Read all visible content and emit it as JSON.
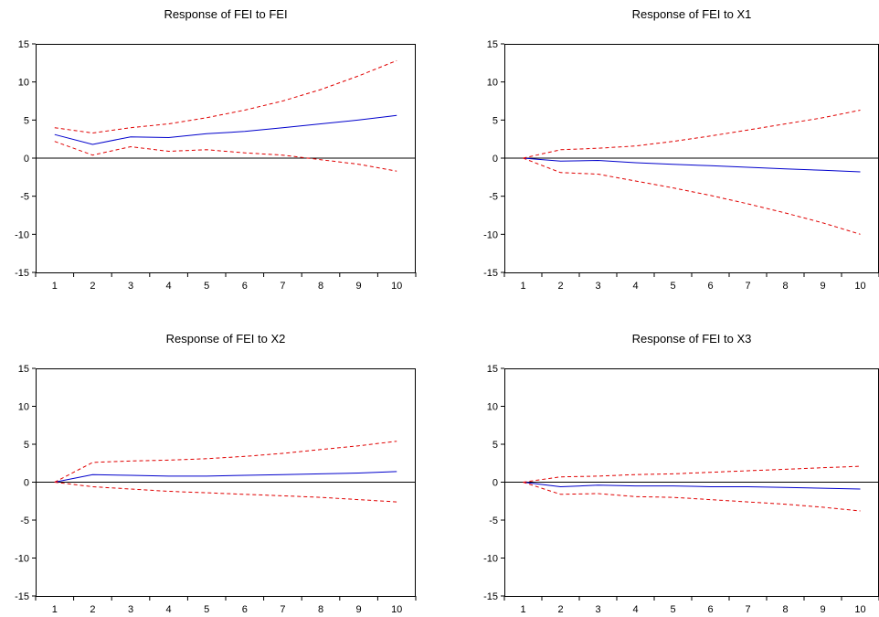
{
  "chart_data": [
    {
      "type": "line",
      "title": "Response of FEI to FEI",
      "x": [
        1,
        2,
        3,
        4,
        5,
        6,
        7,
        8,
        9,
        10
      ],
      "ylim": [
        -15,
        15
      ],
      "yticks": [
        15,
        10,
        5,
        0,
        -5,
        -10,
        -15
      ],
      "series": [
        {
          "role": "response",
          "color": "#0000cc",
          "style": "solid",
          "values": [
            3.1,
            1.8,
            2.8,
            2.7,
            3.2,
            3.5,
            4.0,
            4.5,
            5.0,
            5.6
          ]
        },
        {
          "role": "upper",
          "color": "#e00000",
          "style": "dashed",
          "values": [
            4.0,
            3.3,
            4.0,
            4.5,
            5.3,
            6.3,
            7.5,
            9.0,
            10.8,
            12.8
          ]
        },
        {
          "role": "lower",
          "color": "#e00000",
          "style": "dashed",
          "values": [
            2.2,
            0.4,
            1.5,
            0.9,
            1.1,
            0.7,
            0.4,
            -0.2,
            -0.8,
            -1.7
          ]
        }
      ]
    },
    {
      "type": "line",
      "title": "Response of FEI to X1",
      "x": [
        1,
        2,
        3,
        4,
        5,
        6,
        7,
        8,
        9,
        10
      ],
      "ylim": [
        -15,
        15
      ],
      "yticks": [
        15,
        10,
        5,
        0,
        -5,
        -10,
        -15
      ],
      "series": [
        {
          "role": "response",
          "color": "#0000cc",
          "style": "solid",
          "values": [
            0.0,
            -0.4,
            -0.3,
            -0.6,
            -0.8,
            -1.0,
            -1.2,
            -1.4,
            -1.6,
            -1.8
          ]
        },
        {
          "role": "upper",
          "color": "#e00000",
          "style": "dashed",
          "values": [
            0.0,
            1.1,
            1.3,
            1.6,
            2.2,
            2.9,
            3.7,
            4.5,
            5.3,
            6.3
          ]
        },
        {
          "role": "lower",
          "color": "#e00000",
          "style": "dashed",
          "values": [
            0.0,
            -1.9,
            -2.1,
            -3.0,
            -3.9,
            -4.9,
            -6.0,
            -7.2,
            -8.5,
            -10.0
          ]
        }
      ]
    },
    {
      "type": "line",
      "title": "Response of FEI to X2",
      "x": [
        1,
        2,
        3,
        4,
        5,
        6,
        7,
        8,
        9,
        10
      ],
      "ylim": [
        -15,
        15
      ],
      "yticks": [
        15,
        10,
        5,
        0,
        -5,
        -10,
        -15
      ],
      "series": [
        {
          "role": "response",
          "color": "#0000cc",
          "style": "solid",
          "values": [
            0.0,
            1.0,
            0.9,
            0.8,
            0.8,
            0.9,
            1.0,
            1.1,
            1.2,
            1.4
          ]
        },
        {
          "role": "upper",
          "color": "#e00000",
          "style": "dashed",
          "values": [
            0.0,
            2.6,
            2.8,
            2.9,
            3.1,
            3.4,
            3.8,
            4.3,
            4.8,
            5.4
          ]
        },
        {
          "role": "lower",
          "color": "#e00000",
          "style": "dashed",
          "values": [
            0.0,
            -0.6,
            -0.9,
            -1.2,
            -1.4,
            -1.6,
            -1.8,
            -2.0,
            -2.3,
            -2.6
          ]
        }
      ]
    },
    {
      "type": "line",
      "title": "Response of FEI to X3",
      "x": [
        1,
        2,
        3,
        4,
        5,
        6,
        7,
        8,
        9,
        10
      ],
      "ylim": [
        -15,
        15
      ],
      "yticks": [
        15,
        10,
        5,
        0,
        -5,
        -10,
        -15
      ],
      "series": [
        {
          "role": "response",
          "color": "#0000cc",
          "style": "solid",
          "values": [
            0.0,
            -0.6,
            -0.4,
            -0.5,
            -0.5,
            -0.6,
            -0.6,
            -0.7,
            -0.8,
            -0.9
          ]
        },
        {
          "role": "upper",
          "color": "#e00000",
          "style": "dashed",
          "values": [
            0.0,
            0.7,
            0.8,
            1.0,
            1.1,
            1.3,
            1.5,
            1.7,
            1.9,
            2.1
          ]
        },
        {
          "role": "lower",
          "color": "#e00000",
          "style": "dashed",
          "values": [
            0.0,
            -1.6,
            -1.5,
            -1.9,
            -2.0,
            -2.3,
            -2.6,
            -2.9,
            -3.3,
            -3.8
          ]
        }
      ]
    }
  ]
}
